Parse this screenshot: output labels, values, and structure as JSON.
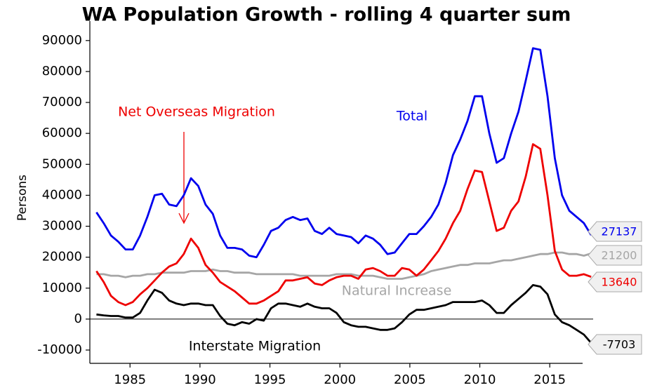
{
  "chart_data": {
    "type": "line",
    "title": "WA Population Growth - rolling 4 quarter sum",
    "y_label": "Persons",
    "x": [
      1982.6,
      1983.12,
      1983.64,
      1984.16,
      1984.68,
      1985.2,
      1985.72,
      1986.24,
      1986.76,
      1987.28,
      1987.8,
      1988.32,
      1988.84,
      1989.36,
      1989.88,
      1990.4,
      1990.92,
      1991.44,
      1991.96,
      1992.48,
      1993.0,
      1993.52,
      1994.04,
      1994.56,
      1995.08,
      1995.6,
      1996.12,
      1996.64,
      1997.16,
      1997.68,
      1998.2,
      1998.72,
      1999.24,
      1999.76,
      2000.28,
      2000.8,
      2001.32,
      2001.84,
      2002.36,
      2002.88,
      2003.4,
      2003.92,
      2004.44,
      2004.96,
      2005.48,
      2006.0,
      2006.52,
      2007.04,
      2007.56,
      2008.08,
      2008.6,
      2009.12,
      2009.64,
      2010.16,
      2010.68,
      2011.2,
      2011.72,
      2012.24,
      2012.76,
      2013.28,
      2013.8,
      2014.32,
      2014.84,
      2015.36,
      2015.88,
      2016.4,
      2016.92,
      2017.44,
      2017.96
    ],
    "series": [
      {
        "name": "Total",
        "color": "#0000ee",
        "values": [
          34500,
          31000,
          27000,
          25000,
          22500,
          22500,
          27000,
          33000,
          40000,
          40500,
          37000,
          36500,
          40000,
          45500,
          43000,
          37000,
          34000,
          27000,
          23000,
          23000,
          22500,
          20500,
          20000,
          24000,
          28500,
          29500,
          32000,
          33000,
          32000,
          32500,
          28500,
          27500,
          29500,
          27500,
          27000,
          26500,
          24500,
          27000,
          26000,
          24000,
          21000,
          21500,
          24500,
          27500,
          27500,
          30000,
          33000,
          37000,
          44000,
          53000,
          58000,
          64000,
          72000,
          72000,
          60000,
          50500,
          52000,
          60000,
          67000,
          77000,
          87500,
          87000,
          72000,
          52000,
          40000,
          35000,
          33000,
          31000,
          27137
        ]
      },
      {
        "name": "Natural Increase",
        "color": "#a6a6a6",
        "values": [
          14500,
          14500,
          14000,
          14000,
          13500,
          14000,
          14000,
          14500,
          14500,
          15000,
          15000,
          15000,
          15000,
          15500,
          15500,
          15500,
          16000,
          15500,
          15500,
          15000,
          15000,
          15000,
          14500,
          14500,
          14500,
          14500,
          14500,
          14500,
          14000,
          14000,
          14000,
          14000,
          14000,
          14500,
          14500,
          14500,
          14000,
          14000,
          14000,
          13500,
          13000,
          13000,
          13000,
          13500,
          14000,
          14500,
          15500,
          16000,
          16500,
          17000,
          17500,
          17500,
          18000,
          18000,
          18000,
          18500,
          19000,
          19000,
          19500,
          20000,
          20500,
          21000,
          21000,
          21500,
          21500,
          21000,
          21000,
          20500,
          21200
        ]
      },
      {
        "name": "Net Overseas Migration",
        "color": "#ee0000",
        "values": [
          15500,
          12000,
          7500,
          5500,
          4500,
          5500,
          8000,
          10000,
          12500,
          15000,
          17000,
          18000,
          21000,
          26000,
          23000,
          17500,
          15000,
          12000,
          10500,
          9000,
          7000,
          5000,
          5000,
          6000,
          7500,
          9000,
          12500,
          12500,
          13000,
          13500,
          11500,
          11000,
          12500,
          13500,
          14000,
          14000,
          13000,
          16000,
          16500,
          15500,
          14000,
          14000,
          16500,
          16000,
          14000,
          16000,
          19000,
          22000,
          26000,
          31000,
          35000,
          42000,
          48000,
          47500,
          38000,
          28500,
          29500,
          35000,
          38000,
          46000,
          56500,
          55000,
          40000,
          22000,
          16000,
          14000,
          14000,
          14500,
          13640
        ]
      },
      {
        "name": "Interstate Migration",
        "color": "#000000",
        "values": [
          1500,
          1200,
          1000,
          1000,
          500,
          500,
          2000,
          6000,
          9500,
          8500,
          6000,
          5000,
          4500,
          5000,
          5000,
          4500,
          4500,
          1000,
          -1500,
          -2000,
          -1000,
          -1500,
          0,
          -500,
          3500,
          5000,
          5000,
          4500,
          4000,
          5000,
          4000,
          3500,
          3500,
          2000,
          -1000,
          -2000,
          -2500,
          -2500,
          -3000,
          -3500,
          -3500,
          -3000,
          -1000,
          1500,
          3000,
          3000,
          3500,
          4000,
          4500,
          5500,
          5500,
          5500,
          5500,
          6000,
          4500,
          2000,
          2000,
          4500,
          6500,
          8500,
          11000,
          10500,
          8000,
          1500,
          -1000,
          -2000,
          -3500,
          -5000,
          -7703
        ]
      }
    ],
    "xlim": [
      1982.13,
      2018.1
    ],
    "ylim": [
      -14300,
      96300
    ],
    "xticks": [
      1985,
      1990,
      1995,
      2000,
      2005,
      2010,
      2015
    ],
    "yticks": [
      -10000,
      0,
      10000,
      20000,
      30000,
      40000,
      50000,
      60000,
      70000,
      80000,
      90000
    ]
  }
}
